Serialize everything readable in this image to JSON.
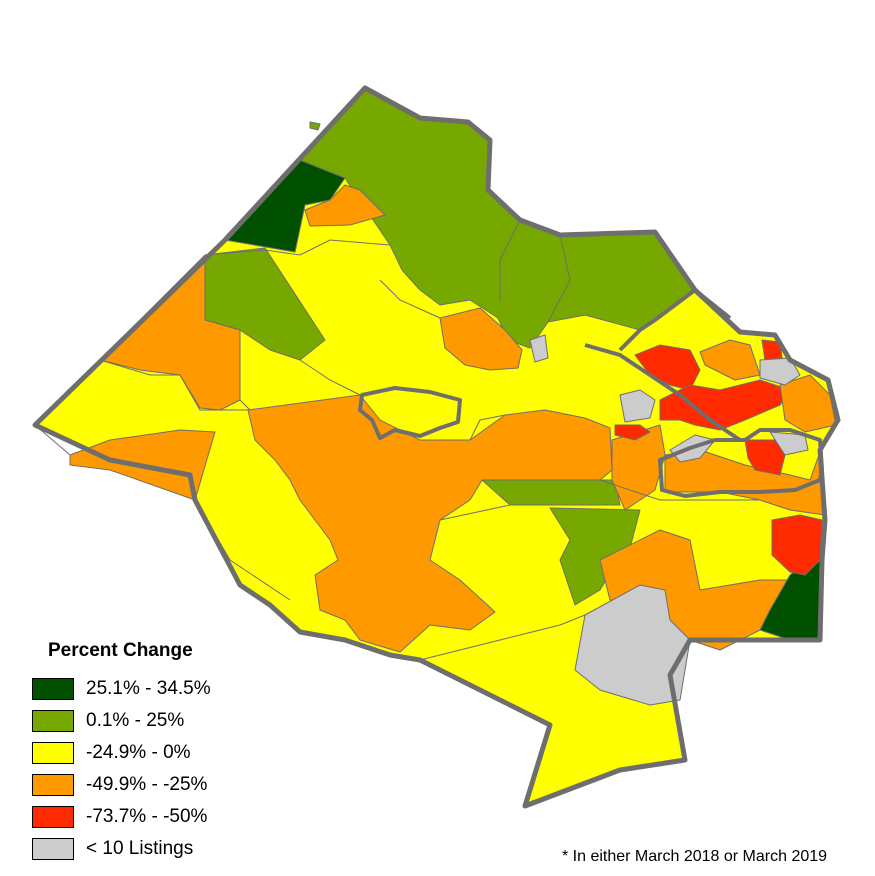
{
  "legend": {
    "title": "Percent Change",
    "items": [
      {
        "label": "25.1% - 34.5%",
        "color": "#005000"
      },
      {
        "label": "0.1% - 25%",
        "color": "#76a800"
      },
      {
        "label": "-24.9% - 0%",
        "color": "#ffff00"
      },
      {
        "label": "-49.9% - -25%",
        "color": "#ff9900"
      },
      {
        "label": "-73.7% - -50%",
        "color": "#ff2a00"
      },
      {
        "label": "< 10 Listings",
        "color": "#cccccc"
      }
    ]
  },
  "footnote": "* In either March 2018 or March 2019",
  "map": {
    "outline_color": "#6e6e6e",
    "background": "#ffffff"
  }
}
